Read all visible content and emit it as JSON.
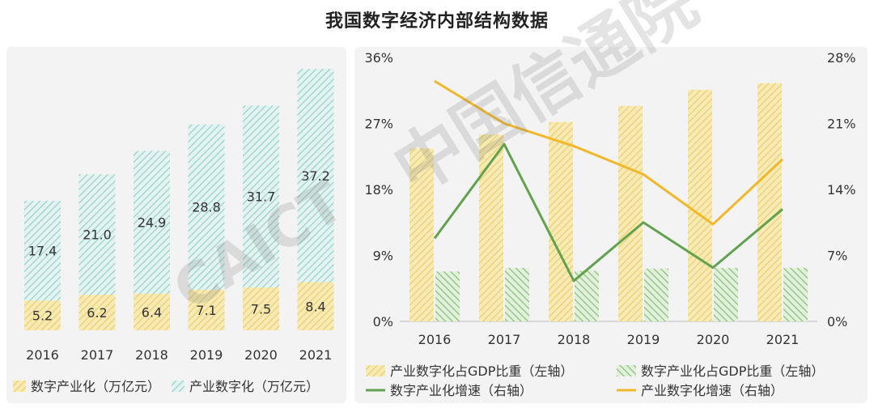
{
  "title": "我国数字经济内部结构数据",
  "watermark": {
    "cn": "中国信通院",
    "en": "CAICT"
  },
  "colors": {
    "yellow": "#f2d78a",
    "yellowStroke": "#e4c25a",
    "teal": "#7fc9c2",
    "green": "#7bb86a",
    "greenLine": "#62a24e",
    "orangeLine": "#f0b82a"
  },
  "chart_data": [
    {
      "type": "bar",
      "stacked": true,
      "categories": [
        "2016",
        "2017",
        "2018",
        "2019",
        "2020",
        "2021"
      ],
      "series": [
        {
          "name": "数字产业化（万亿元）",
          "values": [
            5.2,
            6.2,
            6.4,
            7.1,
            7.5,
            8.4
          ],
          "labels": [
            "5.2",
            "6.2",
            "6.4",
            "7.1",
            "7.5",
            "8.4"
          ]
        },
        {
          "name": "产业数字化（万亿元）",
          "values": [
            17.4,
            21.0,
            24.9,
            28.8,
            31.7,
            37.2
          ],
          "labels": [
            "17.4",
            "21.0",
            "24.9",
            "28.8",
            "31.7",
            "37.2"
          ]
        }
      ],
      "ylim": [
        0,
        48
      ]
    },
    {
      "type": "bar+line",
      "categories": [
        "2016",
        "2017",
        "2018",
        "2019",
        "2020",
        "2021"
      ],
      "left_axis": {
        "ylim": [
          0,
          36
        ],
        "ticks": [
          "0%",
          "9%",
          "18%",
          "27%",
          "36%"
        ]
      },
      "right_axis": {
        "ylim": [
          0,
          28
        ],
        "ticks": [
          "0%",
          "7%",
          "14%",
          "21%",
          "28%"
        ]
      },
      "bars": [
        {
          "name": "产业数字化占GDP比重（左轴）",
          "values": [
            23.6,
            25.5,
            27.2,
            29.4,
            31.6,
            32.5
          ]
        },
        {
          "name": "数字产业化占GDP比重（左轴）",
          "values": [
            6.8,
            7.3,
            6.9,
            7.2,
            7.3,
            7.3
          ]
        }
      ],
      "lines": [
        {
          "name": "数字产业化增速（右轴）",
          "values": [
            8.8,
            18.8,
            4.3,
            10.5,
            5.7,
            11.9
          ]
        },
        {
          "name": "产业数字化增速（右轴）",
          "values": [
            25.5,
            21.0,
            18.6,
            15.6,
            10.3,
            17.2
          ]
        }
      ]
    }
  ]
}
